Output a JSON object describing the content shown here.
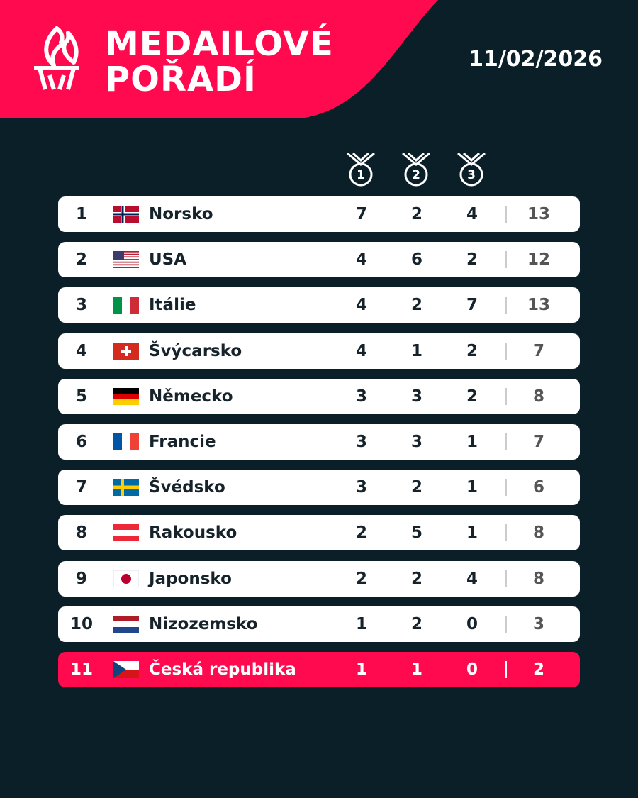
{
  "header": {
    "title": [
      "MEDAILOVÉ",
      "POŘADÍ"
    ],
    "date": "11/02/2026"
  },
  "medal_icons": [
    "1",
    "2",
    "3"
  ],
  "table": {
    "rows": [
      [
        1,
        "Norsko",
        7,
        2,
        4,
        13
      ],
      [
        2,
        "USA",
        4,
        6,
        2,
        12
      ],
      [
        3,
        "Itálie",
        4,
        2,
        7,
        13
      ],
      [
        4,
        "Švýcarsko",
        4,
        1,
        2,
        7
      ],
      [
        5,
        "Německo",
        3,
        3,
        2,
        8
      ],
      [
        6,
        "Francie",
        3,
        3,
        1,
        7
      ],
      [
        7,
        "Švédsko",
        3,
        2,
        1,
        6
      ],
      [
        8,
        "Rakousko",
        2,
        5,
        1,
        8
      ],
      [
        9,
        "Japonsko",
        2,
        2,
        4,
        8
      ],
      [
        10,
        "Nizozemsko",
        1,
        2,
        0,
        3
      ],
      [
        11,
        "Česká republika",
        1,
        1,
        0,
        2
      ]
    ]
  }
}
